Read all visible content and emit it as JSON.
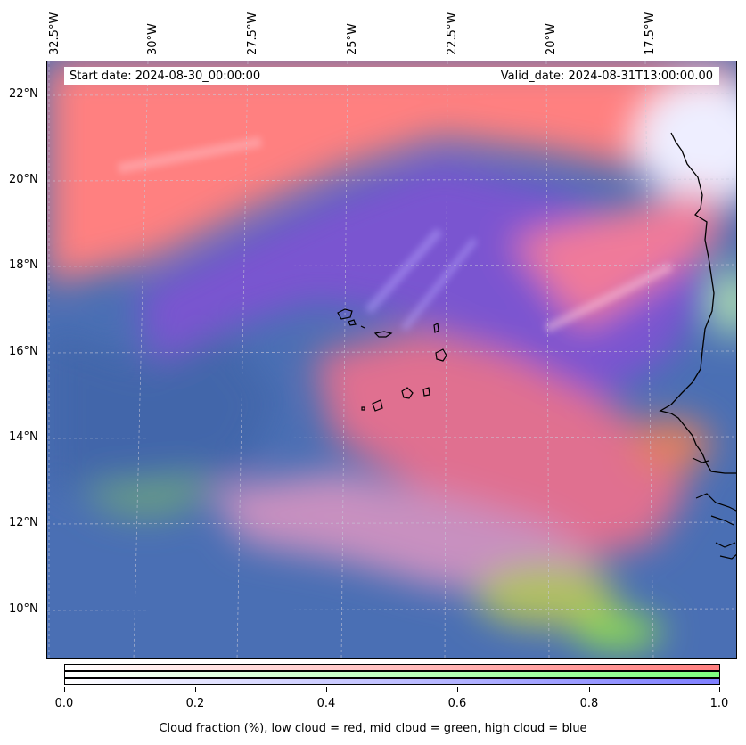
{
  "map": {
    "start_date": "Start date: 2024-08-30_00:00:00",
    "valid_date": "Valid_date: 2024-08-31T13:00:00.00",
    "longitude_labels": [
      "32.5°W",
      "30°W",
      "27.5°W",
      "25°W",
      "22.5°W",
      "20°W",
      "17.5°W"
    ],
    "latitude_labels": [
      "22°N",
      "20°N",
      "18°N",
      "16°N",
      "14°N",
      "12°N",
      "10°N"
    ],
    "layers": [
      {
        "name": "low cloud",
        "color": "#ff7f7f"
      },
      {
        "name": "mid cloud",
        "color": "#7fff7f"
      },
      {
        "name": "high cloud",
        "color": "#7f7fff"
      }
    ]
  },
  "colorbar": {
    "ticks": [
      "0.0",
      "0.2",
      "0.4",
      "0.6",
      "0.8",
      "1.0"
    ],
    "label": "Cloud fraction (%), low cloud = red, mid cloud = green, high cloud = blue",
    "colors": {
      "low": "#ff7f7f",
      "mid": "#7fff7f",
      "high": "#7f7fff"
    }
  }
}
